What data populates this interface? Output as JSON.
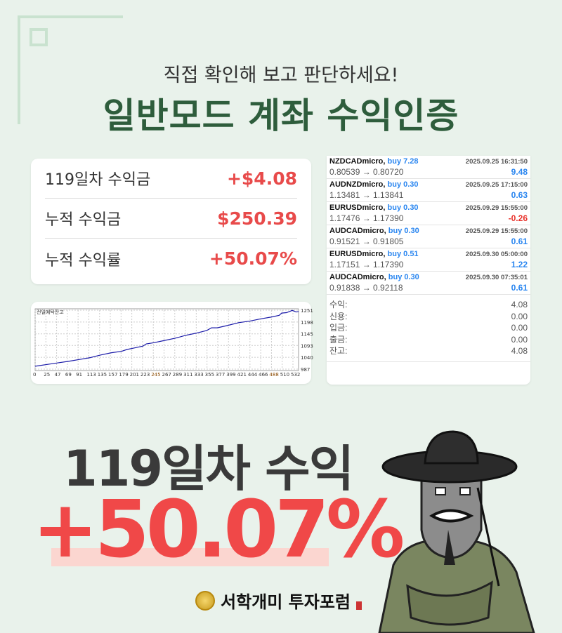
{
  "header": {
    "subtitle": "직접 확인해 보고 판단하세요!",
    "title": "일반모드 계좌 수익인증"
  },
  "summary": [
    {
      "label": "119일차 수익금",
      "value": "+$4.08"
    },
    {
      "label": "누적 수익금",
      "value": "$250.39"
    },
    {
      "label": "누적 수익률",
      "value": "+50.07%"
    }
  ],
  "chart_data": {
    "type": "line",
    "title": "전일예탁잔고",
    "x_ticks": [
      "0",
      "25",
      "47",
      "69",
      "91",
      "113",
      "135",
      "157",
      "179",
      "201",
      "223",
      "245",
      "267",
      "289",
      "311",
      "333",
      "355",
      "377",
      "399",
      "421",
      "444",
      "466",
      "488",
      "510",
      "532"
    ],
    "y_ticks": [
      "987",
      "1040",
      "1093",
      "1145",
      "1198",
      "1251"
    ],
    "ylim": [
      987,
      1251
    ],
    "xlim": [
      0,
      545
    ],
    "grid": true,
    "color": "#1a1aa8",
    "x": [
      0,
      25,
      47,
      69,
      91,
      113,
      135,
      157,
      179,
      190,
      201,
      223,
      230,
      245,
      267,
      289,
      311,
      333,
      355,
      365,
      377,
      399,
      421,
      444,
      466,
      488,
      505,
      510,
      520,
      532,
      540,
      545
    ],
    "y": [
      1000,
      1008,
      1015,
      1022,
      1030,
      1038,
      1050,
      1060,
      1067,
      1075,
      1080,
      1090,
      1100,
      1105,
      1115,
      1125,
      1138,
      1148,
      1160,
      1172,
      1172,
      1183,
      1195,
      1202,
      1212,
      1220,
      1228,
      1238,
      1240,
      1250,
      1243,
      1245
    ]
  },
  "trades": [
    {
      "symbol": "NZDCADmicro,",
      "side": "buy 7.28",
      "time": "2025.09.25 16:31:50",
      "prices": "0.80539 → 0.80720",
      "profit": "9.48"
    },
    {
      "symbol": "AUDNZDmicro,",
      "side": "buy 0.30",
      "time": "2025.09.25 17:15:00",
      "prices": "1.13481 → 1.13841",
      "profit": "0.63"
    },
    {
      "symbol": "EURUSDmicro,",
      "side": "buy 0.30",
      "time": "2025.09.29 15:55:00",
      "prices": "1.17476 → 1.17390",
      "profit": "-0.26"
    },
    {
      "symbol": "AUDCADmicro,",
      "side": "buy 0.30",
      "time": "2025.09.29 15:55:00",
      "prices": "0.91521 → 0.91805",
      "profit": "0.61"
    },
    {
      "symbol": "EURUSDmicro,",
      "side": "buy 0.51",
      "time": "2025.09.30 05:00:00",
      "prices": "1.17151 → 1.17390",
      "profit": "1.22"
    },
    {
      "symbol": "AUDCADmicro,",
      "side": "buy 0.30",
      "time": "2025.09.30 07:35:01",
      "prices": "0.91838 → 0.92118",
      "profit": "0.61"
    }
  ],
  "totals": [
    {
      "label": "수익:",
      "value": "4.08"
    },
    {
      "label": "신용:",
      "value": "0.00"
    },
    {
      "label": "입금:",
      "value": "0.00"
    },
    {
      "label": "출금:",
      "value": "0.00"
    },
    {
      "label": "잔고:",
      "value": "4.08"
    }
  ],
  "headline": {
    "day": "119일차 수익",
    "percent": "+50.07%"
  },
  "logo": {
    "text": "서학개미 투자포럼"
  },
  "colors": {
    "accent_green": "#2e5d3c",
    "red": "#f04848",
    "blue": "#2a86f0"
  }
}
